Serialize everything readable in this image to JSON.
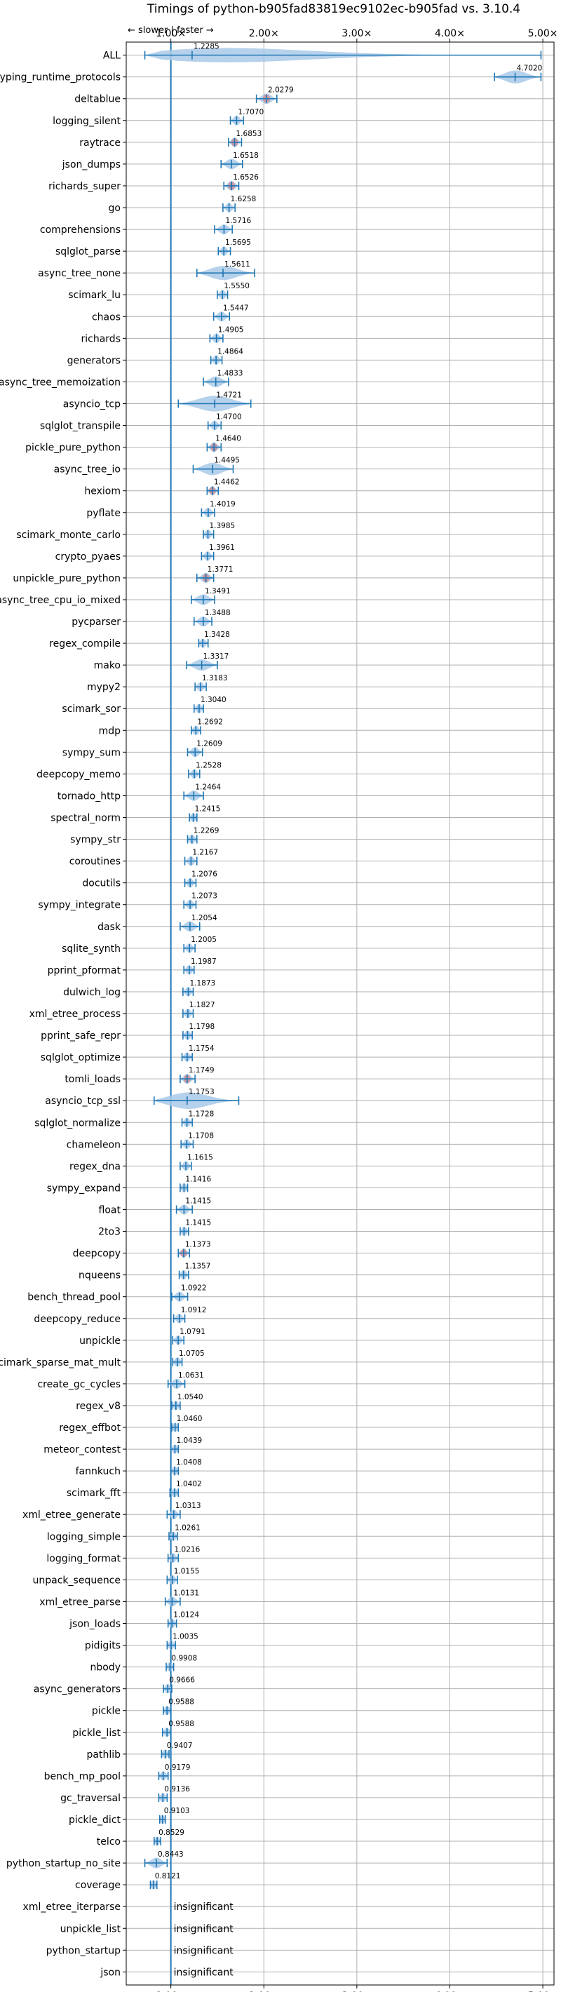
{
  "chart_data": {
    "type": "violin",
    "title": "Timings of python-b905fad83819ec9102ec-b905fad vs. 3.10.4",
    "direction_label": "← slower | faster →",
    "xlim": [
      0.52,
      5.12
    ],
    "x_ticks": [
      1.0,
      2.0,
      3.0,
      4.0,
      5.0
    ],
    "x_tick_labels": [
      "1.00×",
      "2.00×",
      "3.00×",
      "4.00×",
      "5.00×"
    ],
    "grid": true,
    "colors": {
      "violin": "#a9c9e8",
      "errorbar": "#1f77b4",
      "median_red": "#e8534a",
      "baseline": "#1f77b4",
      "grid": "#b0b0b0"
    },
    "categories": [
      "ALL",
      "typing_runtime_protocols",
      "deltablue",
      "logging_silent",
      "raytrace",
      "json_dumps",
      "richards_super",
      "go",
      "comprehensions",
      "sqlglot_parse",
      "async_tree_none",
      "scimark_lu",
      "chaos",
      "richards",
      "generators",
      "async_tree_memoization",
      "asyncio_tcp",
      "sqlglot_transpile",
      "pickle_pure_python",
      "async_tree_io",
      "hexiom",
      "pyflate",
      "scimark_monte_carlo",
      "crypto_pyaes",
      "unpickle_pure_python",
      "async_tree_cpu_io_mixed",
      "pycparser",
      "regex_compile",
      "mako",
      "mypy2",
      "scimark_sor",
      "mdp",
      "sympy_sum",
      "deepcopy_memo",
      "tornado_http",
      "spectral_norm",
      "sympy_str",
      "coroutines",
      "docutils",
      "sympy_integrate",
      "dask",
      "sqlite_synth",
      "pprint_pformat",
      "dulwich_log",
      "xml_etree_process",
      "pprint_safe_repr",
      "sqlglot_optimize",
      "tomli_loads",
      "asyncio_tcp_ssl",
      "sqlglot_normalize",
      "chameleon",
      "regex_dna",
      "sympy_expand",
      "float",
      "2to3",
      "deepcopy",
      "nqueens",
      "bench_thread_pool",
      "deepcopy_reduce",
      "unpickle",
      "scimark_sparse_mat_mult",
      "create_gc_cycles",
      "regex_v8",
      "regex_effbot",
      "meteor_contest",
      "fannkuch",
      "scimark_fft",
      "xml_etree_generate",
      "logging_simple",
      "logging_format",
      "unpack_sequence",
      "xml_etree_parse",
      "json_loads",
      "pidigits",
      "nbody",
      "async_generators",
      "pickle",
      "pickle_list",
      "pathlib",
      "bench_mp_pool",
      "gc_traversal",
      "pickle_dict",
      "telco",
      "python_startup_no_site",
      "coverage",
      "xml_etree_iterparse",
      "unpickle_list",
      "python_startup",
      "json"
    ],
    "values": [
      1.2285,
      4.702,
      2.0279,
      1.707,
      1.6853,
      1.6518,
      1.6526,
      1.6258,
      1.5716,
      1.5695,
      1.5611,
      1.555,
      1.5447,
      1.4905,
      1.4864,
      1.4833,
      1.4721,
      1.47,
      1.464,
      1.4495,
      1.4462,
      1.4019,
      1.3985,
      1.3961,
      1.3771,
      1.3491,
      1.3488,
      1.3428,
      1.3317,
      1.3183,
      1.304,
      1.2692,
      1.2609,
      1.2528,
      1.2464,
      1.2415,
      1.2269,
      1.2167,
      1.2076,
      1.2073,
      1.2054,
      1.2005,
      1.1987,
      1.1873,
      1.1827,
      1.1798,
      1.1754,
      1.1749,
      1.1753,
      1.1728,
      1.1708,
      1.1615,
      1.1416,
      1.1415,
      1.1415,
      1.1373,
      1.1357,
      1.0922,
      1.0912,
      1.0791,
      1.0705,
      1.0631,
      1.054,
      1.046,
      1.0439,
      1.0408,
      1.0402,
      1.0313,
      1.0261,
      1.0216,
      1.0155,
      1.0131,
      1.0124,
      1.0035,
      0.9908,
      0.9666,
      0.9588,
      0.9588,
      0.9407,
      0.9179,
      0.9136,
      0.9103,
      0.8529,
      0.8443,
      0.8121,
      null,
      null,
      null,
      null
    ],
    "value_labels": [
      "1.2285",
      "4.7020",
      "2.0279",
      "1.7070",
      "1.6853",
      "1.6518",
      "1.6526",
      "1.6258",
      "1.5716",
      "1.5695",
      "1.5611",
      "1.5550",
      "1.5447",
      "1.4905",
      "1.4864",
      "1.4833",
      "1.4721",
      "1.4700",
      "1.4640",
      "1.4495",
      "1.4462",
      "1.4019",
      "1.3985",
      "1.3961",
      "1.3771",
      "1.3491",
      "1.3488",
      "1.3428",
      "1.3317",
      "1.3183",
      "1.3040",
      "1.2692",
      "1.2609",
      "1.2528",
      "1.2464",
      "1.2415",
      "1.2269",
      "1.2167",
      "1.2076",
      "1.2073",
      "1.2054",
      "1.2005",
      "1.1987",
      "1.1873",
      "1.1827",
      "1.1798",
      "1.1754",
      "1.1749",
      "1.1753",
      "1.1728",
      "1.1708",
      "1.1615",
      "1.1416",
      "1.1415",
      "1.1415",
      "1.1373",
      "1.1357",
      "1.0922",
      "1.0912",
      "1.0791",
      "1.0705",
      "1.0631",
      "1.0540",
      "1.0460",
      "1.0439",
      "1.0408",
      "1.0402",
      "1.0313",
      "1.0261",
      "1.0216",
      "1.0155",
      "1.0131",
      "1.0124",
      "1.0035",
      "0.9908",
      "0.9666",
      "0.9588",
      "0.9588",
      "0.9407",
      "0.9179",
      "0.9136",
      "0.9103",
      "0.8529",
      "0.8443",
      "0.8121",
      "insignificant",
      "insignificant",
      "insignificant",
      "insignificant"
    ],
    "ranges": [
      [
        0.72,
        4.98
      ],
      [
        4.48,
        4.98
      ],
      [
        1.92,
        2.14
      ],
      [
        1.64,
        1.78
      ],
      [
        1.62,
        1.76
      ],
      [
        1.54,
        1.77
      ],
      [
        1.57,
        1.73
      ],
      [
        1.56,
        1.69
      ],
      [
        1.47,
        1.66
      ],
      [
        1.51,
        1.64
      ],
      [
        1.28,
        1.9
      ],
      [
        1.5,
        1.61
      ],
      [
        1.46,
        1.63
      ],
      [
        1.42,
        1.56
      ],
      [
        1.43,
        1.55
      ],
      [
        1.35,
        1.62
      ],
      [
        1.08,
        1.86
      ],
      [
        1.4,
        1.54
      ],
      [
        1.39,
        1.54
      ],
      [
        1.24,
        1.67
      ],
      [
        1.39,
        1.51
      ],
      [
        1.33,
        1.47
      ],
      [
        1.35,
        1.46
      ],
      [
        1.33,
        1.46
      ],
      [
        1.28,
        1.46
      ],
      [
        1.22,
        1.47
      ],
      [
        1.25,
        1.44
      ],
      [
        1.3,
        1.4
      ],
      [
        1.17,
        1.5
      ],
      [
        1.26,
        1.38
      ],
      [
        1.25,
        1.35
      ],
      [
        1.22,
        1.32
      ],
      [
        1.18,
        1.34
      ],
      [
        1.19,
        1.31
      ],
      [
        1.14,
        1.35
      ],
      [
        1.2,
        1.28
      ],
      [
        1.18,
        1.28
      ],
      [
        1.15,
        1.28
      ],
      [
        1.15,
        1.27
      ],
      [
        1.14,
        1.27
      ],
      [
        1.1,
        1.31
      ],
      [
        1.14,
        1.26
      ],
      [
        1.14,
        1.25
      ],
      [
        1.13,
        1.24
      ],
      [
        1.13,
        1.24
      ],
      [
        1.13,
        1.23
      ],
      [
        1.12,
        1.23
      ],
      [
        1.1,
        1.26
      ],
      [
        0.82,
        1.73
      ],
      [
        1.12,
        1.23
      ],
      [
        1.11,
        1.24
      ],
      [
        1.1,
        1.22
      ],
      [
        1.1,
        1.18
      ],
      [
        1.06,
        1.23
      ],
      [
        1.1,
        1.19
      ],
      [
        1.08,
        1.2
      ],
      [
        1.09,
        1.19
      ],
      [
        1.01,
        1.18
      ],
      [
        1.03,
        1.15
      ],
      [
        1.02,
        1.14
      ],
      [
        1.02,
        1.12
      ],
      [
        0.97,
        1.15
      ],
      [
        1.01,
        1.1
      ],
      [
        1.01,
        1.08
      ],
      [
        1.0,
        1.08
      ],
      [
        1.0,
        1.08
      ],
      [
        0.99,
        1.08
      ],
      [
        0.96,
        1.1
      ],
      [
        0.98,
        1.07
      ],
      [
        0.97,
        1.08
      ],
      [
        0.96,
        1.07
      ],
      [
        0.94,
        1.1
      ],
      [
        0.97,
        1.06
      ],
      [
        0.96,
        1.05
      ],
      [
        0.95,
        1.03
      ],
      [
        0.92,
        1.01
      ],
      [
        0.92,
        1.0
      ],
      [
        0.91,
        1.0
      ],
      [
        0.9,
        0.98
      ],
      [
        0.87,
        0.97
      ],
      [
        0.87,
        0.96
      ],
      [
        0.88,
        0.94
      ],
      [
        0.82,
        0.89
      ],
      [
        0.72,
        0.96
      ],
      [
        0.78,
        0.85
      ],
      null,
      null,
      null,
      null
    ],
    "significant_red": [
      false,
      false,
      true,
      false,
      true,
      false,
      true,
      false,
      false,
      false,
      false,
      false,
      false,
      false,
      false,
      false,
      false,
      false,
      true,
      false,
      true,
      false,
      false,
      false,
      true,
      false,
      false,
      false,
      false,
      false,
      false,
      false,
      false,
      false,
      false,
      false,
      false,
      false,
      false,
      false,
      false,
      false,
      false,
      false,
      false,
      false,
      false,
      true,
      false,
      false,
      false,
      false,
      false,
      false,
      false,
      true,
      false,
      false,
      false,
      false,
      false,
      false,
      false,
      false,
      false,
      false,
      false,
      false,
      false,
      false,
      false,
      false,
      false,
      false,
      false,
      false,
      false,
      false,
      false,
      false,
      false,
      false,
      false,
      false,
      false,
      false,
      false,
      false,
      false
    ]
  }
}
